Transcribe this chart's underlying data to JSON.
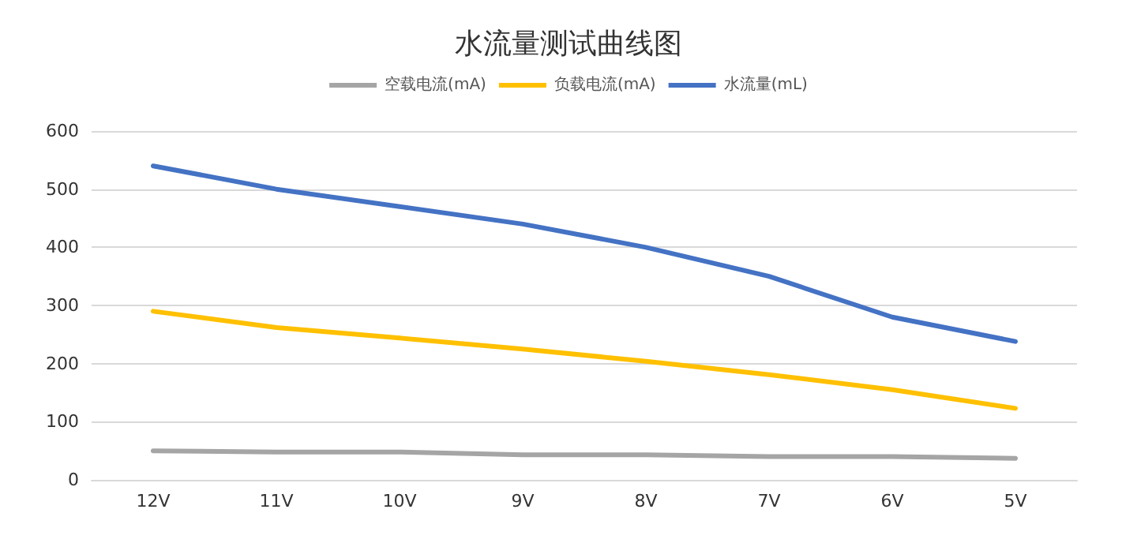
{
  "chart_data": {
    "type": "line",
    "title": "水流量测试曲线图",
    "categories": [
      "12V",
      "11V",
      "10V",
      "9V",
      "8V",
      "7V",
      "6V",
      "5V"
    ],
    "series": [
      {
        "name": "空载电流(mA)",
        "color": "#a5a5a5",
        "values": [
          50,
          48,
          48,
          43,
          43,
          40,
          40,
          37
        ]
      },
      {
        "name": "负载电流(mA)",
        "color": "#ffc000",
        "values": [
          290,
          262,
          244,
          225,
          204,
          181,
          155,
          123
        ]
      },
      {
        "name": "水流量(mL)",
        "color": "#4472c4",
        "values": [
          540,
          500,
          470,
          440,
          400,
          350,
          280,
          238
        ]
      }
    ],
    "ylim": [
      0,
      600
    ],
    "yticks": [
      0,
      100,
      200,
      300,
      400,
      500,
      600
    ],
    "grid": "y",
    "legend": "top",
    "marker": "none",
    "line_style": "solid"
  }
}
